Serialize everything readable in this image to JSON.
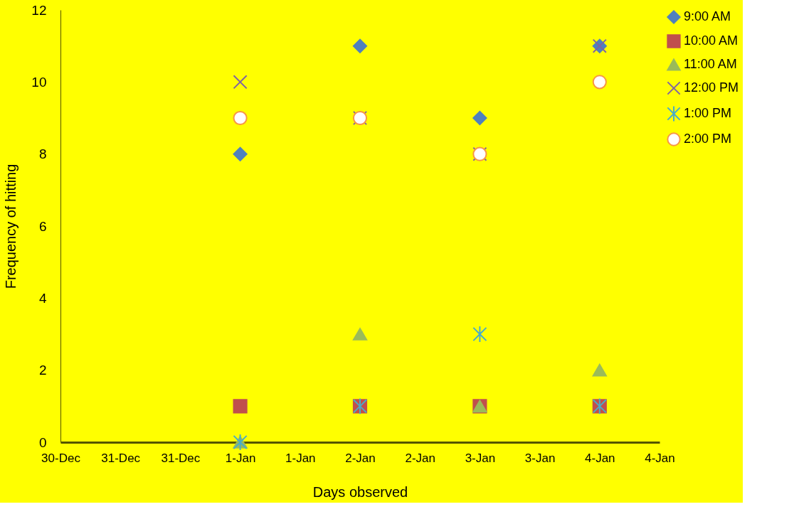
{
  "chart_data": {
    "type": "scatter",
    "xlabel": "Days observed",
    "ylabel": "Frequency of hitting",
    "categories": [
      "30-Dec",
      "31-Dec",
      "31-Dec",
      "1-Jan",
      "1-Jan",
      "2-Jan",
      "2-Jan",
      "3-Jan",
      "3-Jan",
      "4-Jan",
      "4-Jan"
    ],
    "ylim": [
      0,
      12
    ],
    "yticks": [
      0,
      2,
      4,
      6,
      8,
      10,
      12
    ],
    "grid": false,
    "legend": "right",
    "series": [
      {
        "name": "9:00 AM",
        "color": "#4f81bd",
        "marker": "diamond",
        "values": [
          null,
          null,
          null,
          8,
          null,
          11,
          null,
          9,
          null,
          11,
          null
        ]
      },
      {
        "name": "10:00 AM",
        "color": "#c0504d",
        "marker": "square",
        "values": [
          null,
          null,
          null,
          1,
          null,
          1,
          null,
          1,
          null,
          1,
          null
        ]
      },
      {
        "name": "11:00 AM",
        "color": "#9bbb59",
        "marker": "triangle",
        "values": [
          null,
          null,
          null,
          0,
          null,
          3,
          null,
          1,
          null,
          2,
          null
        ]
      },
      {
        "name": "12:00 PM",
        "color": "#8064a2",
        "marker": "cross",
        "values": [
          null,
          null,
          null,
          10,
          null,
          9,
          null,
          8,
          null,
          11,
          null
        ]
      },
      {
        "name": "1:00 PM",
        "color": "#4bacc6",
        "marker": "cross",
        "values": [
          null,
          null,
          null,
          0,
          null,
          1,
          null,
          3,
          null,
          1,
          null
        ]
      },
      {
        "name": "2:00 PM",
        "color": "#f79646",
        "marker": "circle",
        "values": [
          null,
          null,
          null,
          9,
          null,
          9,
          null,
          8,
          null,
          10,
          null
        ]
      }
    ]
  }
}
